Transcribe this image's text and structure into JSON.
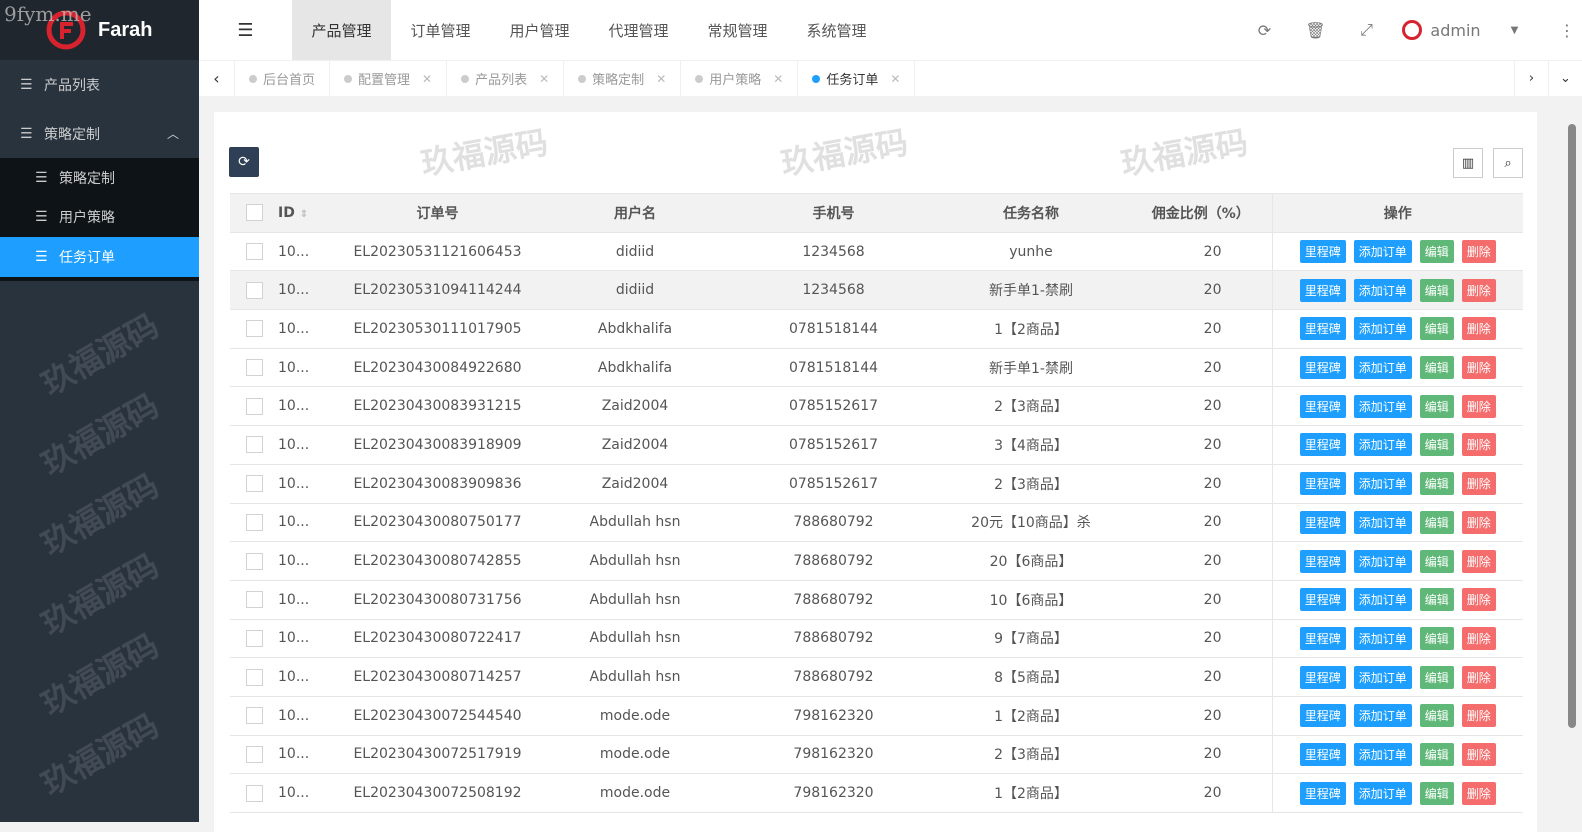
{
  "brand": {
    "name": "Farah",
    "watermark_site": "9fym.me",
    "watermark_text": "玖福源码"
  },
  "sidebar": {
    "items": [
      {
        "label": "产品列表"
      },
      {
        "label": "策略定制",
        "expanded": true,
        "children": [
          {
            "label": "策略定制"
          },
          {
            "label": "用户策略"
          },
          {
            "label": "任务订单",
            "active": true
          }
        ]
      }
    ]
  },
  "topnav": {
    "items": [
      "产品管理",
      "订单管理",
      "用户管理",
      "代理管理",
      "常规管理",
      "系统管理"
    ],
    "active": "产品管理"
  },
  "user": {
    "name": "admin"
  },
  "tabs": [
    {
      "label": "后台首页"
    },
    {
      "label": "配置管理"
    },
    {
      "label": "产品列表"
    },
    {
      "label": "策略定制"
    },
    {
      "label": "用户策略"
    },
    {
      "label": "任务订单",
      "active": true
    }
  ],
  "table": {
    "headers": [
      "ID",
      "订单号",
      "用户名",
      "手机号",
      "任务名称",
      "佣金比例（%）",
      "操作"
    ],
    "actions": [
      "里程碑",
      "添加订单",
      "编辑",
      "删除"
    ],
    "rows": [
      [
        "10...",
        "EL20230531121606453",
        "didiid",
        "1234568",
        "yunhe",
        "20"
      ],
      [
        "10...",
        "EL20230531094114244",
        "didiid",
        "1234568",
        "新手单1-禁刷",
        "20"
      ],
      [
        "10...",
        "EL20230530111017905",
        "Abdkhalifa",
        "0781518144",
        "1【2商品】",
        "20"
      ],
      [
        "10...",
        "EL20230430084922680",
        "Abdkhalifa",
        "0781518144",
        "新手单1-禁刷",
        "20"
      ],
      [
        "10...",
        "EL20230430083931215",
        "Zaid2004",
        "0785152617",
        "2【3商品】",
        "20"
      ],
      [
        "10...",
        "EL20230430083918909",
        "Zaid2004",
        "0785152617",
        "3【4商品】",
        "20"
      ],
      [
        "10...",
        "EL20230430083909836",
        "Zaid2004",
        "0785152617",
        "2【3商品】",
        "20"
      ],
      [
        "10...",
        "EL20230430080750177",
        "Abdullah hsn",
        "788680792",
        "20元【10商品】杀",
        "20"
      ],
      [
        "10...",
        "EL20230430080742855",
        "Abdullah hsn",
        "788680792",
        "20【6商品】",
        "20"
      ],
      [
        "10...",
        "EL20230430080731756",
        "Abdullah hsn",
        "788680792",
        "10【6商品】",
        "20"
      ],
      [
        "10...",
        "EL20230430080722417",
        "Abdullah hsn",
        "788680792",
        "9【7商品】",
        "20"
      ],
      [
        "10...",
        "EL20230430080714257",
        "Abdullah hsn",
        "788680792",
        "8【5商品】",
        "20"
      ],
      [
        "10...",
        "EL20230430072544540",
        "mode.ode",
        "798162320",
        "1【2商品】",
        "20"
      ],
      [
        "10...",
        "EL20230430072517919",
        "mode.ode",
        "798162320",
        "2【3商品】",
        "20"
      ],
      [
        "10...",
        "EL20230430072508192",
        "mode.ode",
        "798162320",
        "1【2商品】",
        "20"
      ]
    ]
  }
}
